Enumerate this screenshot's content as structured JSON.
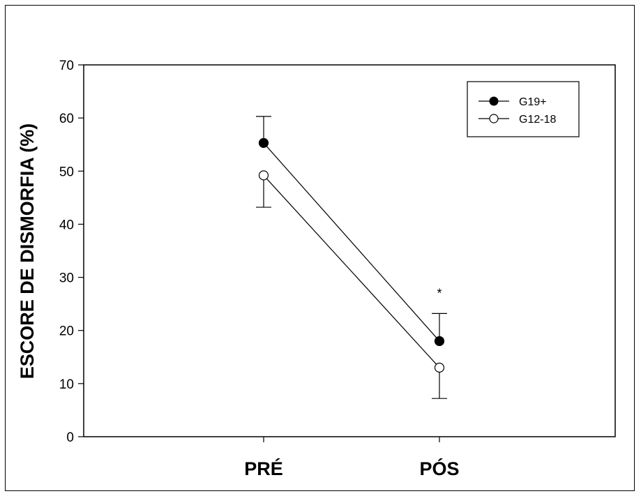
{
  "chart_data": {
    "type": "line",
    "categories": [
      "PRÉ",
      "PÓS"
    ],
    "ylabel": "ESCORE DE DISMORFIA (%)",
    "xlabel": "",
    "ylim": [
      0,
      70
    ],
    "yticks": [
      0,
      10,
      20,
      30,
      40,
      50,
      60,
      70
    ],
    "grid": false,
    "legend_position": "top-right",
    "series": [
      {
        "name": "G19+",
        "marker": "filled-circle",
        "values": [
          55.3,
          18.0
        ],
        "error": [
          5.0,
          5.2
        ],
        "color": "#000000"
      },
      {
        "name": "G12-18",
        "marker": "open-circle",
        "values": [
          49.2,
          13.0
        ],
        "error": [
          6.0,
          5.8
        ],
        "color": "#000000"
      }
    ],
    "annotations": [
      {
        "text": "*",
        "category": "PÓS",
        "y": 27
      }
    ]
  }
}
